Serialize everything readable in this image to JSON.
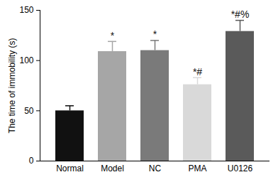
{
  "chart_data": {
    "type": "bar",
    "categories": [
      "Normal",
      "Model",
      "NC",
      "PMA",
      "U0126"
    ],
    "values": [
      50,
      109,
      110,
      76,
      129
    ],
    "errors": [
      5,
      10,
      10,
      7,
      11
    ],
    "colors": [
      "#111111",
      "#a6a6a6",
      "#7a7a7a",
      "#d9d9d9",
      "#5a5a5a"
    ],
    "annotations": [
      null,
      "*",
      "*",
      "*#",
      "*#%"
    ],
    "y_label": "The time of immobility (s)",
    "ylim": [
      0,
      150
    ],
    "yticks": [
      0,
      50,
      100,
      150
    ],
    "grid": false
  }
}
